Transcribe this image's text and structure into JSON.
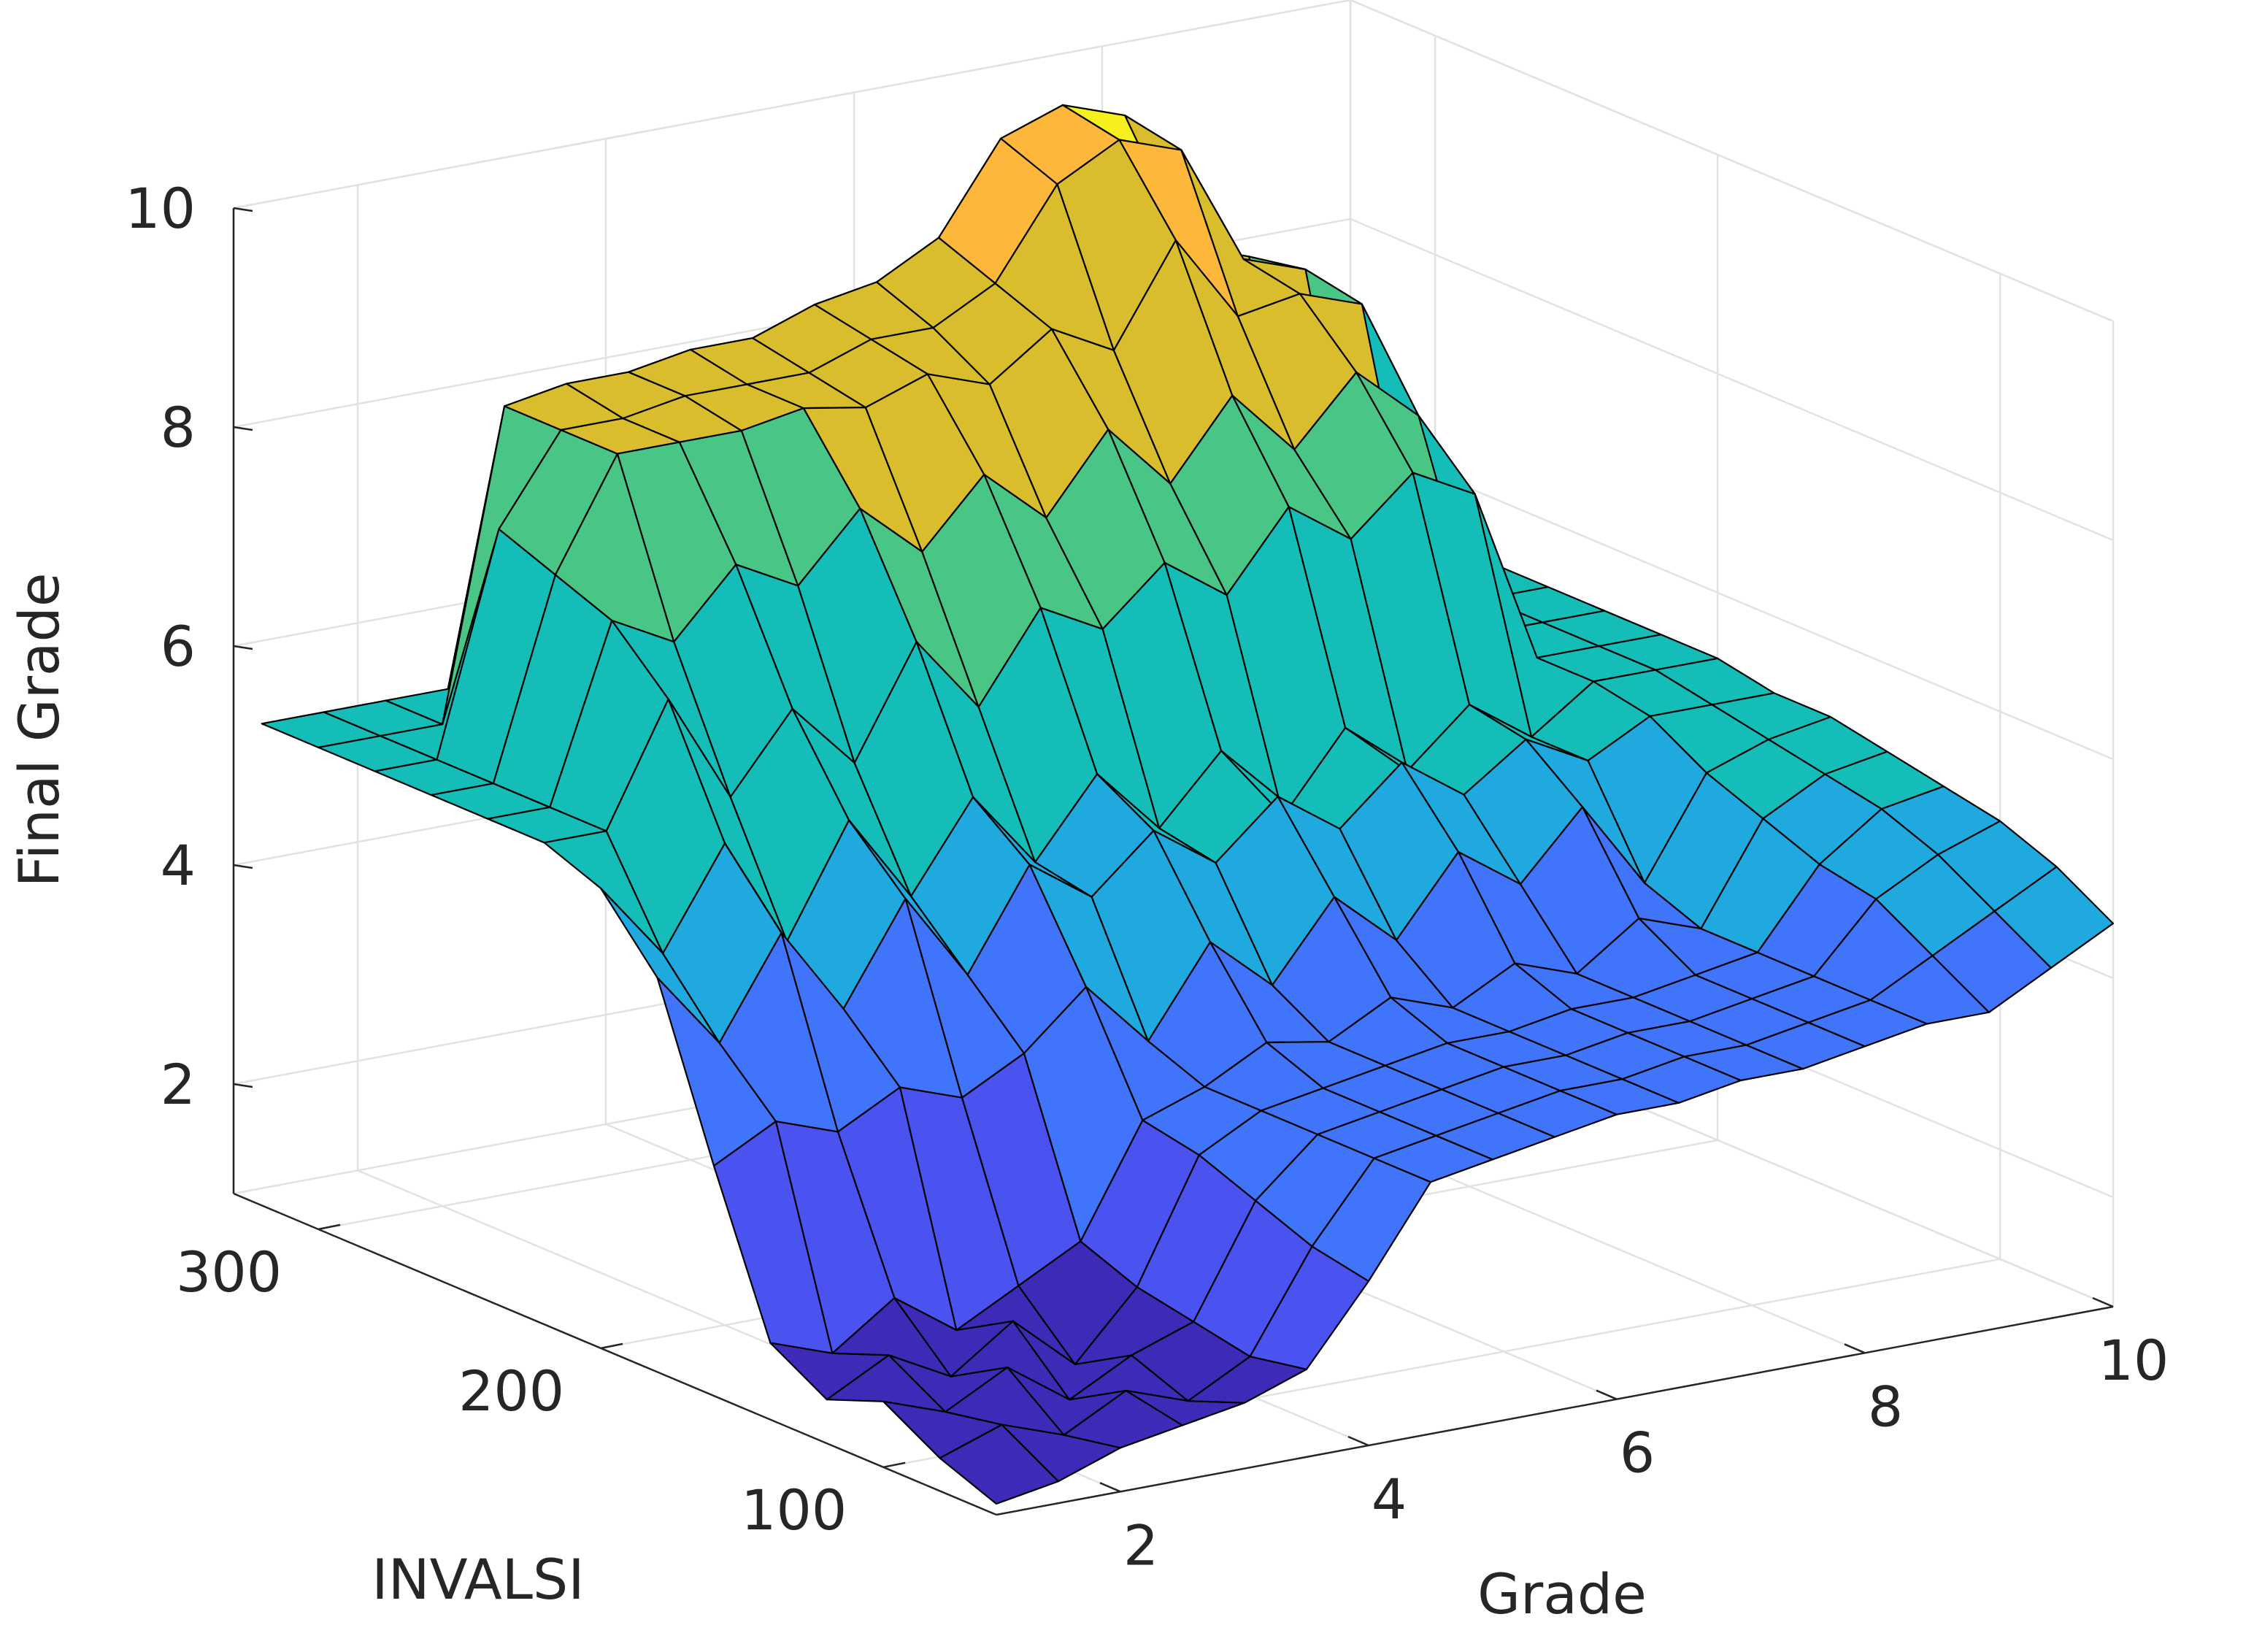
{
  "chart_data": {
    "type": "surface",
    "title": "",
    "xlabel": "Grade",
    "ylabel": "INVALSI",
    "zlabel": "Final Grade",
    "xlim": [
      1,
      10
    ],
    "ylim": [
      60,
      330
    ],
    "zlim": [
      1,
      10
    ],
    "x_ticks": [
      2,
      4,
      6,
      8,
      10
    ],
    "x_tick_labels": [
      "2",
      "4",
      "6",
      "8",
      "10"
    ],
    "y_ticks": [
      100,
      200,
      300
    ],
    "y_tick_labels": [
      "100",
      "200",
      "300"
    ],
    "z_ticks": [
      2,
      4,
      6,
      8,
      10
    ],
    "z_tick_labels": [
      "2",
      "4",
      "6",
      "8",
      "10"
    ],
    "grid": true,
    "colormap": "parula",
    "colors": {
      "level_1": "#3d2bb8",
      "level_2": "#4a52f0",
      "level_3": "#3f74fb",
      "level_4": "#1fa9de",
      "level_5": "#15bdb8",
      "level_6": "#49c686",
      "level_7": "#d9bd2c",
      "level_8": "#fdb83c",
      "level_9": "#f7f01e"
    },
    "grade": [
      1,
      1.5,
      2,
      2.5,
      3,
      3.5,
      4,
      4.5,
      5,
      5.5,
      6,
      6.5,
      7,
      7.5,
      8,
      8.5,
      9,
      9.5,
      10
    ],
    "invalsi": [
      60,
      80,
      100,
      120,
      140,
      160,
      180,
      200,
      220,
      240,
      260,
      280,
      300,
      320
    ],
    "final_grade": [
      [
        1.1,
        1.2,
        1.4,
        1.5,
        1.6,
        1.8,
        2.5,
        3.3,
        3.4,
        3.5,
        3.6,
        3.6,
        3.7,
        3.7,
        3.8,
        3.9,
        3.9,
        4.2,
        4.5
      ],
      [
        1.3,
        1.5,
        1.3,
        1.6,
        1.4,
        1.7,
        2.6,
        3.3,
        3.4,
        3.5,
        3.6,
        3.6,
        3.7,
        3.7,
        3.8,
        3.9,
        4.2,
        4.5,
        4.8
      ],
      [
        1.6,
        1.4,
        1.7,
        1.3,
        1.6,
        1.8,
        2.8,
        3.3,
        3.4,
        3.5,
        3.6,
        3.6,
        3.7,
        3.7,
        3.8,
        3.9,
        4.5,
        4.8,
        5.0
      ],
      [
        1.4,
        1.7,
        1.4,
        1.8,
        1.3,
        1.9,
        3.0,
        3.3,
        3.4,
        3.5,
        3.6,
        3.6,
        3.7,
        3.7,
        3.8,
        3.9,
        4.6,
        5.0,
        5.1
      ],
      [
        1.7,
        1.5,
        1.9,
        1.5,
        1.8,
        2.1,
        3.1,
        3.3,
        3.6,
        3.5,
        3.8,
        3.6,
        3.9,
        3.7,
        4.1,
        3.9,
        4.8,
        5.1,
        5.2
      ],
      [
        3.1,
        3.4,
        3.2,
        3.5,
        3.3,
        3.6,
        4.1,
        3.5,
        4.3,
        3.8,
        4.5,
        4.0,
        4.7,
        4.3,
        4.9,
        4.1,
        5.0,
        5.2,
        5.3
      ],
      [
        4.6,
        3.9,
        4.8,
        4.0,
        4.9,
        4.1,
        5.0,
        4.6,
        5.1,
        4.7,
        5.2,
        4.8,
        5.3,
        4.9,
        5.3,
        5.0,
        5.3,
        5.3,
        5.3
      ],
      [
        5.2,
        4.5,
        5.4,
        4.4,
        5.4,
        4.6,
        5.4,
        4.7,
        5.4,
        4.8,
        5.4,
        4.7,
        5.4,
        4.9,
        5.4,
        5.0,
        5.4,
        5.4,
        5.4
      ],
      [
        5.4,
        5.4,
        6.5,
        5.5,
        6.2,
        5.6,
        6.6,
        5.9,
        6.7,
        6.4,
        6.9,
        6.5,
        7.2,
        6.8,
        7.3,
        7.0,
        5.4,
        5.4,
        5.4
      ],
      [
        5.4,
        5.4,
        7.0,
        6.7,
        7.3,
        7.0,
        7.6,
        7.1,
        7.7,
        7.2,
        7.9,
        7.3,
        8.0,
        7.4,
        8.0,
        7.5,
        5.4,
        5.4,
        5.4
      ],
      [
        5.4,
        5.4,
        7.2,
        8.2,
        8.2,
        8.2,
        8.3,
        8.2,
        8.4,
        8.2,
        8.6,
        8.3,
        9.2,
        8.4,
        8.5,
        8.3,
        5.4,
        5.4,
        5.4
      ],
      [
        5.4,
        5.4,
        7.4,
        8.2,
        8.2,
        8.3,
        8.3,
        8.3,
        8.5,
        8.5,
        8.8,
        9.6,
        9.9,
        9.7,
        8.6,
        8.4,
        5.4,
        5.4,
        5.4
      ],
      [
        5.4,
        5.4,
        5.4,
        8.2,
        8.3,
        8.3,
        8.4,
        8.4,
        8.6,
        8.7,
        9.0,
        9.8,
        10.0,
        9.8,
        8.5,
        8.3,
        5.4,
        5.4,
        5.4
      ],
      [
        5.4,
        5.4,
        5.4,
        5.4,
        5.4,
        5.4,
        5.4,
        5.4,
        5.4,
        5.4,
        5.4,
        5.4,
        5.4,
        5.4,
        5.4,
        5.4,
        5.4,
        5.4,
        5.4
      ]
    ]
  }
}
